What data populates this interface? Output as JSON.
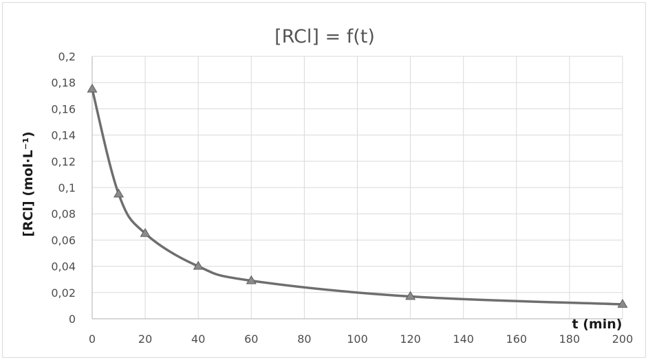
{
  "chart_data": {
    "type": "scatter",
    "title": "[RCl] = f(t)",
    "xlabel": "t (min)",
    "ylabel": "[RCl] (mol·L⁻¹)",
    "xlim": [
      0,
      200
    ],
    "ylim": [
      0,
      0.2
    ],
    "x_ticks": [
      0,
      20,
      40,
      60,
      80,
      100,
      120,
      140,
      160,
      180,
      200
    ],
    "x_tick_labels": [
      "0",
      "20",
      "40",
      "60",
      "80",
      "100",
      "120",
      "140",
      "160",
      "180",
      "200"
    ],
    "y_ticks": [
      0,
      0.02,
      0.04,
      0.06,
      0.08,
      0.1,
      0.12,
      0.14,
      0.16,
      0.18,
      0.2
    ],
    "y_tick_labels": [
      "0",
      "0,02",
      "0,04",
      "0,06",
      "0,08",
      "0,1",
      "0,12",
      "0,14",
      "0,16",
      "0,18",
      "0,2"
    ],
    "grid": true,
    "legend": "none",
    "series": [
      {
        "marker": "triangle",
        "line": "smooth",
        "x": [
          0,
          10,
          20,
          40,
          60,
          120,
          200
        ],
        "y": [
          0.175,
          0.095,
          0.065,
          0.04,
          0.029,
          0.017,
          0.011
        ]
      }
    ],
    "colors": {
      "series": "#6e6e6e",
      "grid": "#d9d9d9"
    }
  }
}
